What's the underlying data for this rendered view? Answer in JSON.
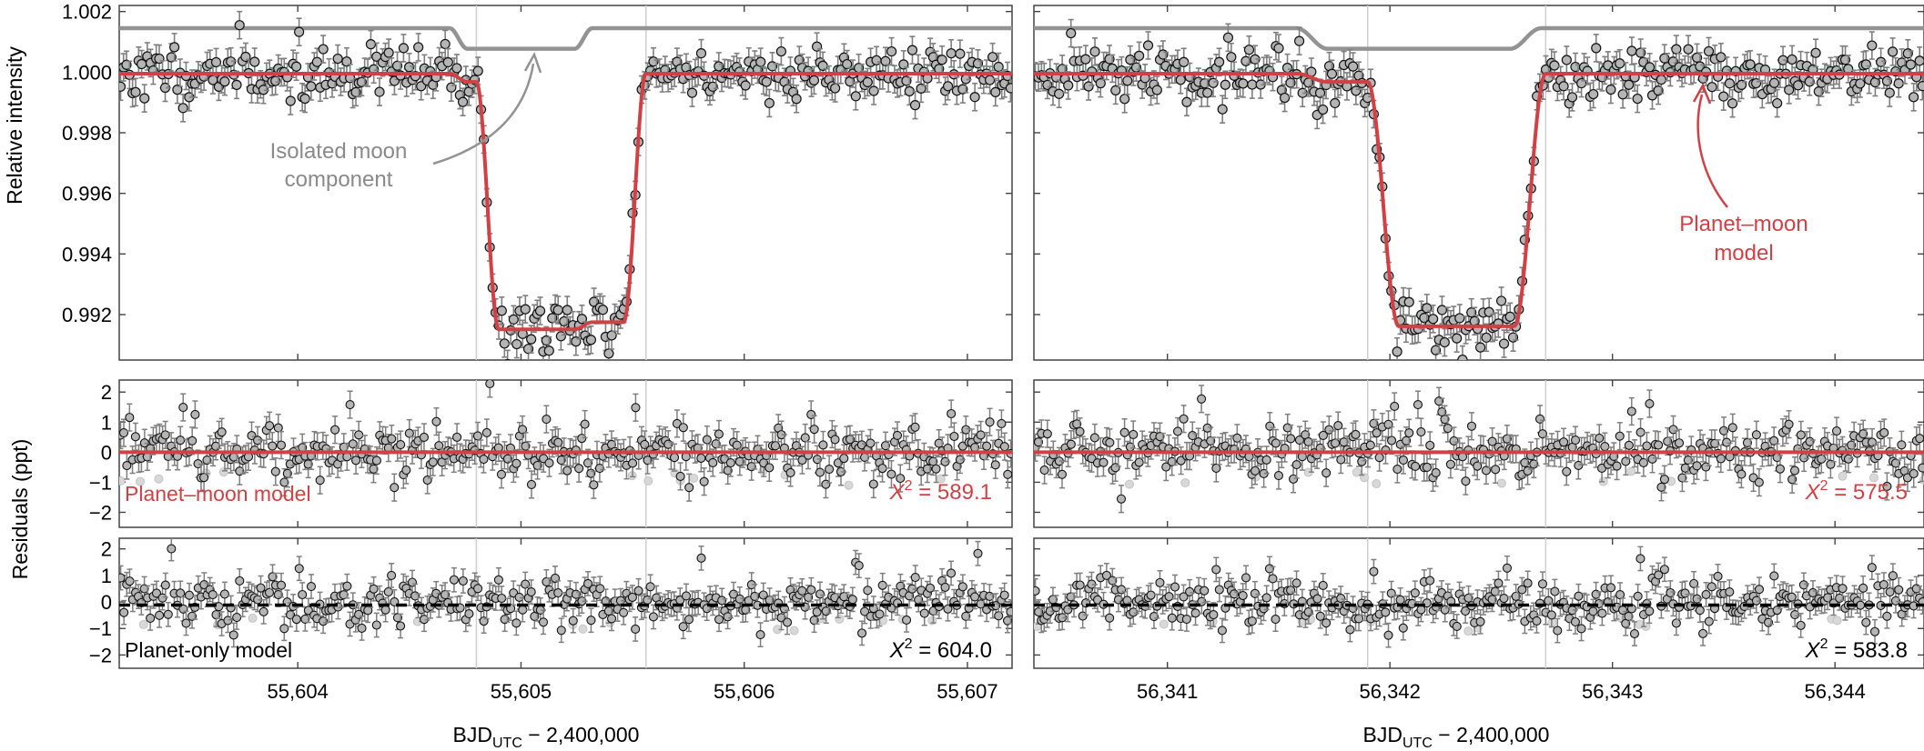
{
  "chart_data": [
    {
      "id": "top-left",
      "type": "scatter",
      "ylabel": "Relative intensity",
      "x_range": [
        55603.2,
        55607.2
      ],
      "ylim": [
        0.9905,
        1.0022
      ],
      "x_ticks": [
        55604,
        55605,
        55606,
        55607
      ],
      "x_tick_labels": [
        "55,604",
        "55,605",
        "55,606",
        "55,607"
      ],
      "y_ticks": [
        0.992,
        0.994,
        0.996,
        0.998,
        1.0,
        1.002
      ],
      "y_tick_labels": [
        "0.992",
        "0.994",
        "0.996",
        "0.998",
        "1.000",
        "1.002"
      ],
      "transit": {
        "start": 55604.8,
        "end": 55605.56,
        "ingress": 0.1,
        "depth": 0.0082,
        "baseline": 0.99995
      },
      "moon": {
        "start": 55604.68,
        "end": 55605.32,
        "ingress": 0.08,
        "depth": 0.00068,
        "offset_y": 1.00145
      },
      "series": [
        {
          "role": "data",
          "marker": "circle",
          "error_bar": 0.00045
        },
        {
          "name": "Planet–moon model",
          "role": "model",
          "color": "#d14045"
        },
        {
          "name": "Isolated moon component",
          "role": "moon-model",
          "color": "#939393"
        }
      ],
      "annotation": "Isolated moon component",
      "annotation_lines": [
        "Isolated moon",
        "component"
      ]
    },
    {
      "id": "top-right",
      "type": "scatter",
      "x_range": [
        56340.4,
        56344.4
      ],
      "ylim": [
        0.9905,
        1.0022
      ],
      "x_ticks": [
        56341,
        56342,
        56343,
        56344
      ],
      "x_tick_labels": [
        "56,341",
        "56,342",
        "56,343",
        "56,344"
      ],
      "y_ticks": [
        0.992,
        0.994,
        0.996,
        0.998,
        1.0,
        1.002
      ],
      "transit": {
        "start": 56341.9,
        "end": 56342.7,
        "ingress": 0.14,
        "depth": 0.0081,
        "baseline": 0.99995
      },
      "moon": {
        "start": 56341.58,
        "end": 56342.68,
        "ingress": 0.14,
        "depth": 0.00068,
        "offset_y": 1.00145
      },
      "series": [
        {
          "role": "data",
          "marker": "circle",
          "error_bar": 0.00045
        },
        {
          "name": "Planet–moon model",
          "role": "model",
          "color": "#d14045"
        },
        {
          "name": "Isolated moon component",
          "role": "moon-model",
          "color": "#939393"
        }
      ],
      "annotation": "Planet–moon model",
      "annotation_lines": [
        "Planet–moon",
        "model"
      ]
    },
    {
      "id": "mid-left",
      "type": "scatter",
      "ylabel": "Residuals (ppt)",
      "ylim": [
        -2.5,
        2.4
      ],
      "y_ticks": [
        -2,
        -1,
        0,
        1,
        2
      ],
      "y_tick_labels": [
        "−2",
        "−1",
        "0",
        "1",
        "2"
      ],
      "model_label": "Planet–moon model",
      "chi_symbol": "X",
      "chi_exp": "2",
      "chi_value": " = 589.1"
    },
    {
      "id": "mid-right",
      "type": "scatter",
      "ylim": [
        -2.5,
        2.4
      ],
      "y_ticks": [
        -2,
        -1,
        0,
        1,
        2
      ],
      "chi_symbol": "X",
      "chi_exp": "2",
      "chi_value": " = 575.5"
    },
    {
      "id": "bot-left",
      "type": "scatter",
      "ylim": [
        -2.5,
        2.4
      ],
      "y_ticks": [
        -2,
        -1,
        0,
        1,
        2
      ],
      "y_tick_labels": [
        "−2",
        "−1",
        "0",
        "1",
        "2"
      ],
      "model_label": "Planet-only model",
      "chi_symbol": "X",
      "chi_exp": "2",
      "chi_value": " = 604.0",
      "xlabel": {
        "main": "BJD",
        "sub": "UTC",
        "rest": " − 2,400,000"
      }
    },
    {
      "id": "bot-right",
      "type": "scatter",
      "ylim": [
        -2.5,
        2.4
      ],
      "y_ticks": [
        -2,
        -1,
        0,
        1,
        2
      ],
      "chi_symbol": "X",
      "chi_exp": "2",
      "chi_value": " = 583.8",
      "xlabel": {
        "main": "BJD",
        "sub": "UTC",
        "rest": " − 2,400,000"
      }
    }
  ],
  "colors": {
    "model_red": "#d14045",
    "moon_gray": "#939393",
    "marker_fill": "#b5b5b5",
    "error_bar": "#7f7f7f",
    "dashed_model": "#000000",
    "mid_transit_lines": "#cfcfcf"
  }
}
